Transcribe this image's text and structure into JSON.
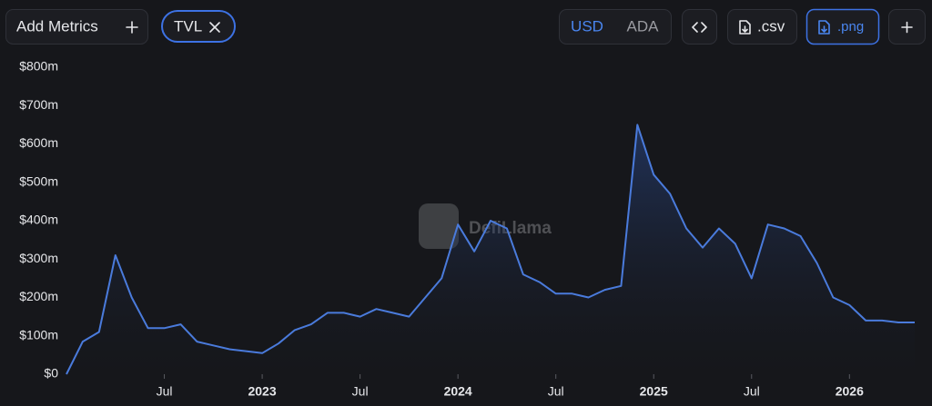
{
  "toolbar": {
    "add_metrics": "Add Metrics",
    "metric": "TVL",
    "currencies": [
      "USD",
      "ADA"
    ],
    "csv": ".csv",
    "png": ".png"
  },
  "watermark": "DefiLlama",
  "chart_data": {
    "type": "line",
    "color": "#4a7bdc",
    "x": [
      "2022-01",
      "2022-02",
      "2022-03",
      "2022-04",
      "2022-05",
      "2022-06",
      "2022-07",
      "2022-08",
      "2022-09",
      "2022-10",
      "2022-11",
      "2022-12",
      "2023-01",
      "2023-02",
      "2023-03",
      "2023-04",
      "2023-05",
      "2023-06",
      "2023-07",
      "2023-08",
      "2023-09",
      "2023-10",
      "2023-11",
      "2023-12",
      "2024-01",
      "2024-02",
      "2024-03",
      "2024-04",
      "2024-05",
      "2024-06",
      "2024-07",
      "2024-08",
      "2024-09",
      "2024-10",
      "2024-11",
      "2024-12",
      "2025-01",
      "2025-02",
      "2025-03",
      "2025-04",
      "2025-05",
      "2025-06",
      "2025-07",
      "2025-08",
      "2025-09",
      "2025-10",
      "2025-11",
      "2025-12",
      "2026-01",
      "2026-02",
      "2026-03",
      "2026-04",
      "2026-05"
    ],
    "values": [
      0,
      85,
      110,
      310,
      200,
      120,
      120,
      130,
      85,
      75,
      65,
      60,
      55,
      80,
      115,
      130,
      160,
      160,
      150,
      170,
      160,
      150,
      200,
      250,
      390,
      320,
      400,
      380,
      260,
      240,
      210,
      210,
      200,
      220,
      230,
      650,
      520,
      470,
      380,
      330,
      380,
      340,
      250,
      390,
      380,
      360,
      290,
      200,
      180,
      140,
      140,
      135,
      135
    ],
    "xlim": [
      "2022-01",
      "2026-05"
    ],
    "xticks": [
      {
        "value": "2022-07",
        "label": "Jul"
      },
      {
        "value": "2023-01",
        "label": "2023"
      },
      {
        "value": "2023-07",
        "label": "Jul"
      },
      {
        "value": "2024-01",
        "label": "2024"
      },
      {
        "value": "2024-07",
        "label": "Jul"
      },
      {
        "value": "2025-01",
        "label": "2025"
      },
      {
        "value": "2025-07",
        "label": "Jul"
      },
      {
        "value": "2026-01",
        "label": "2026"
      }
    ],
    "ylim": [
      0,
      800
    ],
    "yticks": [
      {
        "value": 0,
        "label": "$0"
      },
      {
        "value": 100,
        "label": "$100m"
      },
      {
        "value": 200,
        "label": "$200m"
      },
      {
        "value": 300,
        "label": "$300m"
      },
      {
        "value": 400,
        "label": "$400m"
      },
      {
        "value": 500,
        "label": "$500m"
      },
      {
        "value": 600,
        "label": "$600m"
      },
      {
        "value": 700,
        "label": "$700m"
      },
      {
        "value": 800,
        "label": "$800m"
      }
    ]
  }
}
